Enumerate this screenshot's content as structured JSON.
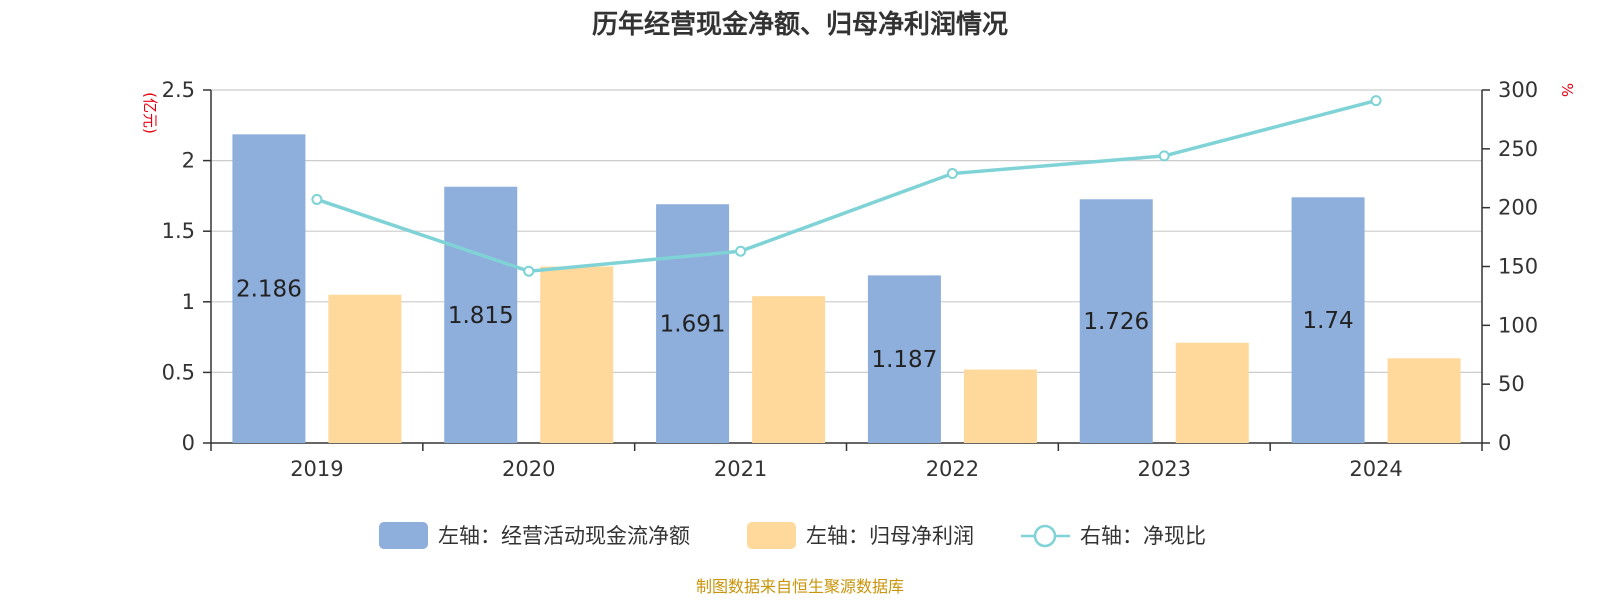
{
  "chart_data": {
    "type": "bar",
    "title": "历年经营现金净额、归母净利润情况",
    "categories": [
      "2019",
      "2020",
      "2021",
      "2022",
      "2023",
      "2024"
    ],
    "series": [
      {
        "name": "左轴：经营活动现金流净额",
        "axis": "left",
        "kind": "bar",
        "color": "#8eaedb",
        "values": [
          2.186,
          1.815,
          1.691,
          1.187,
          1.726,
          1.74
        ],
        "data_labels": true
      },
      {
        "name": "左轴：归母净利润",
        "axis": "left",
        "kind": "bar",
        "color": "#ffd99b",
        "values": [
          1.05,
          1.25,
          1.04,
          0.52,
          0.71,
          0.6
        ],
        "data_labels": false
      },
      {
        "name": "右轴：净现比",
        "axis": "right",
        "kind": "line",
        "color": "#7fd3d6",
        "values": [
          207,
          146,
          163,
          229,
          244,
          291
        ],
        "data_labels": false
      }
    ],
    "y_left": {
      "label": "(亿元)",
      "ticks": [
        "0",
        "0.5",
        "1",
        "1.5",
        "2",
        "2.5"
      ],
      "ylim": [
        0,
        2.5
      ]
    },
    "y_right": {
      "label": "%",
      "ticks": [
        "0",
        "50",
        "100",
        "150",
        "200",
        "250",
        "300"
      ],
      "ylim": [
        0,
        300
      ]
    },
    "grid": true,
    "legend_position": "bottom"
  },
  "footer": {
    "source": "制图数据来自恒生聚源数据库"
  },
  "colors": {
    "bar1": "#8eaedb",
    "bar2": "#ffd99b",
    "line": "#7fd3d6",
    "unit": "#e60012",
    "source": "#c8940a"
  }
}
